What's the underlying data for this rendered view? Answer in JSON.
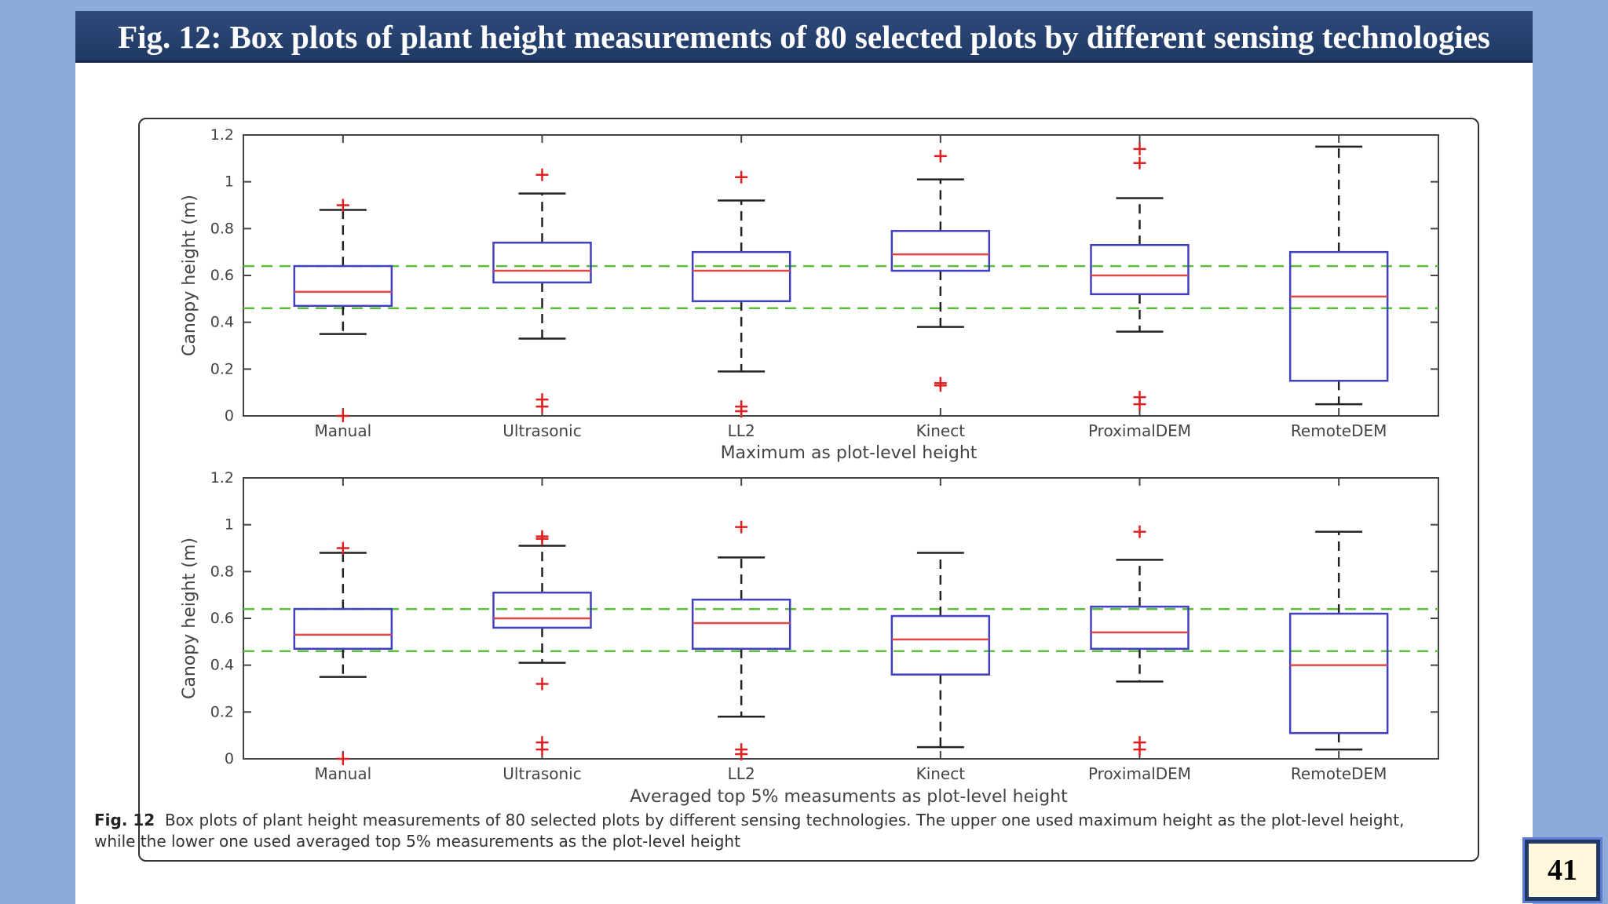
{
  "slide": {
    "title": "Fig. 12: Box plots of plant height measurements of 80 selected plots by different sensing technologies",
    "page_number": "41"
  },
  "caption": {
    "label": "Fig. 12",
    "text": "Box plots of plant height measurements of 80 selected plots by different sensing technologies. The upper one used maximum height as the plot-level height, while the lower one used averaged top 5% measurements as the plot-level height"
  },
  "colors": {
    "box": "#4040c0",
    "median": "#e04848",
    "whisker": "#222222",
    "outlier": "#e02020",
    "reference_line": "#5cbf3c"
  },
  "chart_data": [
    {
      "type": "box",
      "xlabel": "Maximum as plot-level height",
      "ylabel": "Canopy height (m)",
      "ylim": [
        0,
        1.2
      ],
      "yticks": [
        "0",
        "0.2",
        "0.4",
        "0.6",
        "0.8",
        "1",
        "1.2"
      ],
      "reference_lines": [
        0.64,
        0.46
      ],
      "categories": [
        "Manual",
        "Ultrasonic",
        "LL2",
        "Kinect",
        "ProximalDEM",
        "RemoteDEM"
      ],
      "boxes": [
        {
          "whisker_low": 0.35,
          "q1": 0.47,
          "median": 0.53,
          "q3": 0.64,
          "whisker_high": 0.88,
          "outliers": [
            0.9,
            0.0
          ]
        },
        {
          "whisker_low": 0.33,
          "q1": 0.57,
          "median": 0.62,
          "q3": 0.74,
          "whisker_high": 0.95,
          "outliers": [
            1.03,
            0.07,
            0.04
          ]
        },
        {
          "whisker_low": 0.19,
          "q1": 0.49,
          "median": 0.62,
          "q3": 0.7,
          "whisker_high": 0.92,
          "outliers": [
            1.02,
            0.04,
            0.02
          ]
        },
        {
          "whisker_low": 0.38,
          "q1": 0.62,
          "median": 0.69,
          "q3": 0.79,
          "whisker_high": 1.01,
          "outliers": [
            1.11,
            0.14,
            0.13
          ]
        },
        {
          "whisker_low": 0.36,
          "q1": 0.52,
          "median": 0.6,
          "q3": 0.73,
          "whisker_high": 0.93,
          "outliers": [
            1.14,
            1.08,
            0.08,
            0.05
          ]
        },
        {
          "whisker_low": 0.05,
          "q1": 0.15,
          "median": 0.51,
          "q3": 0.7,
          "whisker_high": 1.15,
          "outliers": []
        }
      ]
    },
    {
      "type": "box",
      "xlabel": "Averaged top 5% measuments as plot-level height",
      "ylabel": "Canopy height (m)",
      "ylim": [
        0,
        1.2
      ],
      "yticks": [
        "0",
        "0.2",
        "0.4",
        "0.6",
        "0.8",
        "1",
        "1.2"
      ],
      "reference_lines": [
        0.64,
        0.46
      ],
      "categories": [
        "Manual",
        "Ultrasonic",
        "LL2",
        "Kinect",
        "ProximalDEM",
        "RemoteDEM"
      ],
      "boxes": [
        {
          "whisker_low": 0.35,
          "q1": 0.47,
          "median": 0.53,
          "q3": 0.64,
          "whisker_high": 0.88,
          "outliers": [
            0.9,
            0.0
          ]
        },
        {
          "whisker_low": 0.41,
          "q1": 0.56,
          "median": 0.6,
          "q3": 0.71,
          "whisker_high": 0.91,
          "outliers": [
            0.95,
            0.94,
            0.32,
            0.07,
            0.04
          ]
        },
        {
          "whisker_low": 0.18,
          "q1": 0.47,
          "median": 0.58,
          "q3": 0.68,
          "whisker_high": 0.86,
          "outliers": [
            0.99,
            0.04,
            0.02
          ]
        },
        {
          "whisker_low": 0.05,
          "q1": 0.36,
          "median": 0.51,
          "q3": 0.61,
          "whisker_high": 0.88,
          "outliers": []
        },
        {
          "whisker_low": 0.33,
          "q1": 0.47,
          "median": 0.54,
          "q3": 0.65,
          "whisker_high": 0.85,
          "outliers": [
            0.97,
            0.07,
            0.04
          ]
        },
        {
          "whisker_low": 0.04,
          "q1": 0.11,
          "median": 0.4,
          "q3": 0.62,
          "whisker_high": 0.97,
          "outliers": []
        }
      ]
    }
  ]
}
